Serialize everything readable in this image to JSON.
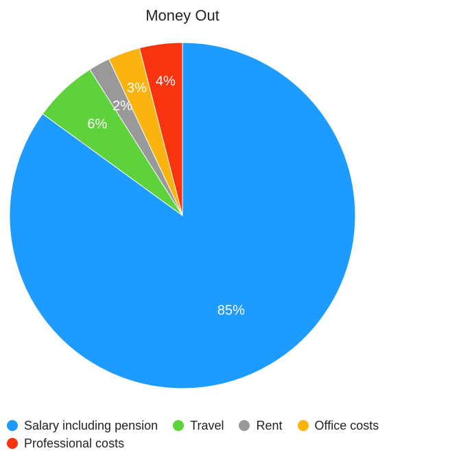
{
  "chart_data": {
    "type": "pie",
    "title": "Money Out",
    "slices": [
      {
        "name": "Salary including pension",
        "label": "85%",
        "value": 85,
        "color": "#1E9BFF"
      },
      {
        "name": "Travel",
        "label": "6%",
        "value": 6,
        "color": "#5DD23A"
      },
      {
        "name": "Rent",
        "label": "2%",
        "value": 2,
        "color": "#999999"
      },
      {
        "name": "Office costs",
        "label": "3%",
        "value": 3,
        "color": "#FBB40F"
      },
      {
        "name": "Professional costs",
        "label": "4%",
        "value": 4,
        "color": "#F8330E"
      }
    ],
    "legend_position": "bottom"
  }
}
